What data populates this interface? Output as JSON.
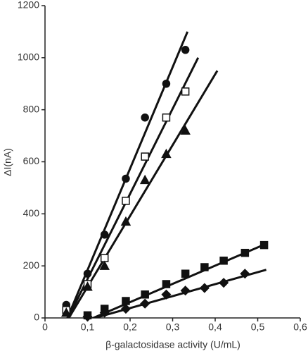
{
  "chart_data": {
    "type": "scatter",
    "x_label": "β-galactosidase activity (U/mL)",
    "y_label": "ΔI(nA)",
    "xlim": [
      0,
      0.6
    ],
    "xticks": [
      0,
      {
        "value": 0.1,
        "label": "0,1"
      },
      {
        "value": 0.2,
        "label": "0,2"
      },
      {
        "value": 0.3,
        "label": "0,3"
      },
      {
        "value": 0.4,
        "label": "0,4"
      },
      {
        "value": 0.5,
        "label": "0,5"
      },
      {
        "value": 0.6,
        "label": "0,6"
      }
    ],
    "ylim": [
      0,
      1200
    ],
    "yticks": [
      0,
      200,
      400,
      600,
      800,
      1000,
      1200
    ],
    "series": [
      {
        "marker": "circle",
        "filled": true,
        "color": "#111111",
        "x": [
          0.05,
          0.1,
          0.14,
          0.19,
          0.235,
          0.285,
          0.33
        ],
        "values": [
          50,
          170,
          320,
          535,
          770,
          900,
          1030
        ],
        "fit_x": [
          0.045,
          0.335
        ],
        "fit_y": [
          -30,
          1100
        ]
      },
      {
        "marker": "square",
        "filled": false,
        "color": "#111111",
        "x": [
          0.05,
          0.1,
          0.14,
          0.19,
          0.235,
          0.285,
          0.33
        ],
        "values": [
          30,
          130,
          230,
          450,
          620,
          770,
          870
        ],
        "fit_x": [
          0.045,
          0.36
        ],
        "fit_y": [
          -30,
          1000
        ]
      },
      {
        "marker": "triangle",
        "filled": true,
        "color": "#111111",
        "x": [
          0.05,
          0.1,
          0.14,
          0.19,
          0.235,
          0.285,
          0.33
        ],
        "values": [
          20,
          120,
          200,
          370,
          530,
          630,
          720
        ],
        "fit_x": [
          0.045,
          0.405
        ],
        "fit_y": [
          -30,
          950
        ]
      },
      {
        "marker": "square",
        "filled": true,
        "color": "#111111",
        "x": [
          0.1,
          0.14,
          0.19,
          0.235,
          0.285,
          0.33,
          0.375,
          0.42,
          0.47,
          0.515
        ],
        "values": [
          10,
          35,
          65,
          90,
          130,
          170,
          195,
          220,
          250,
          280
        ],
        "fit_x": [
          0.085,
          0.52
        ],
        "fit_y": [
          -20,
          285
        ]
      },
      {
        "marker": "diamond",
        "filled": true,
        "color": "#111111",
        "x": [
          0.1,
          0.14,
          0.19,
          0.235,
          0.285,
          0.33,
          0.375,
          0.42,
          0.47
        ],
        "values": [
          5,
          20,
          35,
          55,
          90,
          105,
          115,
          135,
          170
        ],
        "fit_x": [
          0.085,
          0.52
        ],
        "fit_y": [
          -15,
          185
        ]
      }
    ]
  }
}
